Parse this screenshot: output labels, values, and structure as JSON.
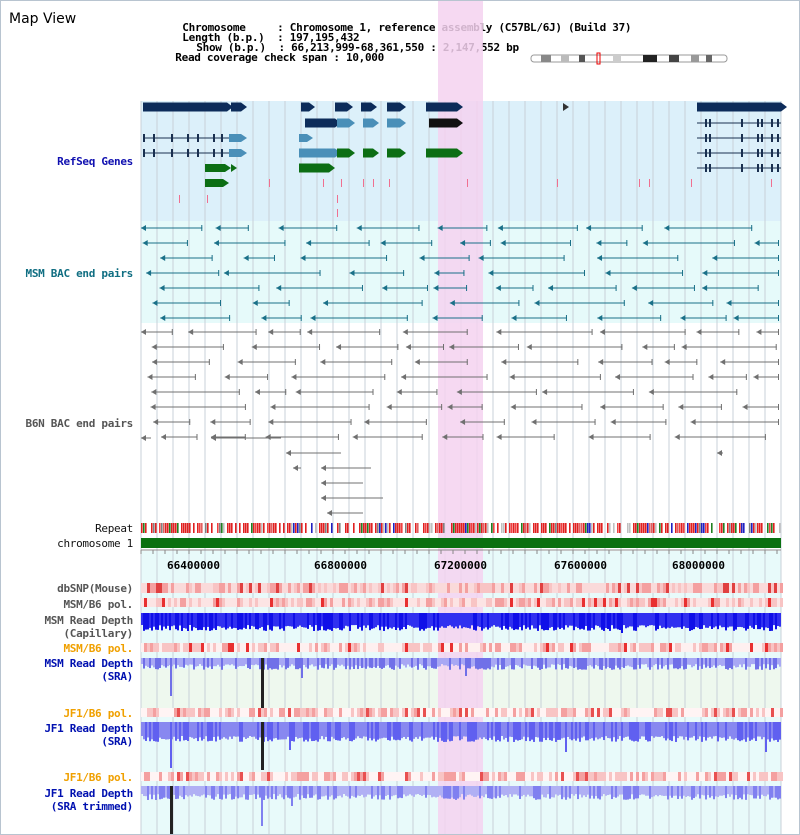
{
  "title": "Map View",
  "info": {
    "chromosome_label": "Chromosome",
    "chromosome_value": "Chromosome 1, reference assembly (C57BL/6J) (Build 37)",
    "length_label": "Length (b.p.)",
    "length_value": "197,195,432",
    "show_label": "Show (b.p.)",
    "show_value": "66,213,999-68,361,550 : 2,147,552 bp",
    "coverage_label": "Read coverage check span",
    "coverage_value": "10,000"
  },
  "tracks": {
    "refseq": "RefSeq Genes",
    "msm_bac": "MSM BAC end pairs",
    "b6n_bac": "B6N BAC end pairs",
    "repeat": "Repeat",
    "chromosome": "chromosome 1",
    "dbsnp": "dbSNP(Mouse)",
    "msm_b6_pol": "MSM/B6 pol.",
    "msm_read_depth_cap_1": "MSM Read Depth",
    "msm_read_depth_cap_2": "(Capillary)",
    "msm_b6_pol_2": "MSM/B6 pol.",
    "msm_read_depth_sra_1": "MSM Read Depth",
    "msm_read_depth_sra_2": "(SRA)",
    "jf1_b6_pol": "JF1/B6 pol.",
    "jf1_read_depth_sra_1": "JF1 Read Depth",
    "jf1_read_depth_sra_2": "(SRA)",
    "jf1_b6_pol_2": "JF1/B6 pol.",
    "jf1_read_depth_trim_1": "JF1 Read Depth",
    "jf1_read_depth_trim_2": "(SRA trimmed)"
  },
  "axis": {
    "ticks": [
      "66400000",
      "66800000",
      "67200000",
      "67600000",
      "68000000"
    ]
  },
  "colors": {
    "refseq_bg": "#dcf0fa",
    "bac_bg": "#e6fafa",
    "highlight": "#f5d2f0",
    "gene_navy": "#0d2c5a",
    "gene_steel": "#4a8fb8",
    "gene_green": "#0c6e14",
    "chromosome_bar": "#0a7010",
    "depth_blue": "#1010e8",
    "depth_light": "#8a8af0",
    "pol_red": "#e03030"
  }
}
